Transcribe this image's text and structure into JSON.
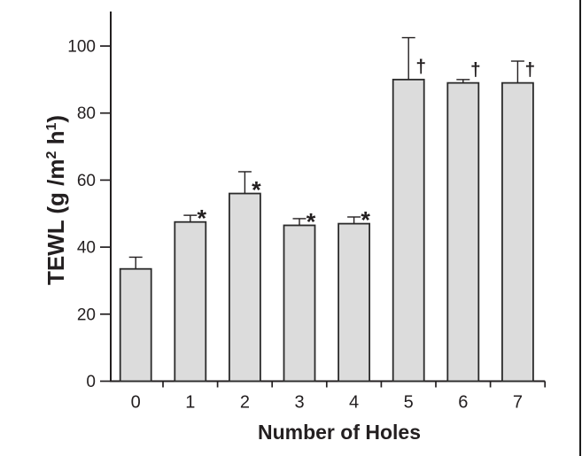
{
  "figure": {
    "background_color": "#ffffff",
    "scan_edge_color": "#1c1c1c"
  },
  "chart_data": {
    "type": "bar",
    "title": "",
    "xlabel": "Number of Holes",
    "ylabel": "TEWL (g /m2 h1)",
    "ylabel_parts": [
      {
        "text": "TEWL (g /m",
        "sup": false
      },
      {
        "text": "2",
        "sup": true
      },
      {
        "text": " h",
        "sup": false
      },
      {
        "text": "1",
        "sup": true
      },
      {
        "text": ")",
        "sup": false
      }
    ],
    "categories": [
      "0",
      "1",
      "2",
      "3",
      "4",
      "5",
      "6",
      "7"
    ],
    "values": [
      33.5,
      47.5,
      56,
      46.5,
      47,
      90,
      89,
      89
    ],
    "error_upper": [
      3.5,
      2,
      6.5,
      2,
      2,
      12.5,
      1,
      6.5
    ],
    "annotations": [
      "",
      "*",
      "*",
      "*",
      "*",
      "†",
      "†",
      "†"
    ],
    "ylim": [
      0,
      110
    ],
    "yticks": [
      0,
      20,
      40,
      60,
      80,
      100
    ],
    "grid": "off",
    "legend": "none",
    "bar_fill": "#dcdcdc",
    "bar_stroke": "#2b2b2b",
    "axis_color": "#231f20",
    "text_color": "#231f20",
    "error_bar_color": "#231f20",
    "marker_color": "#111111"
  }
}
